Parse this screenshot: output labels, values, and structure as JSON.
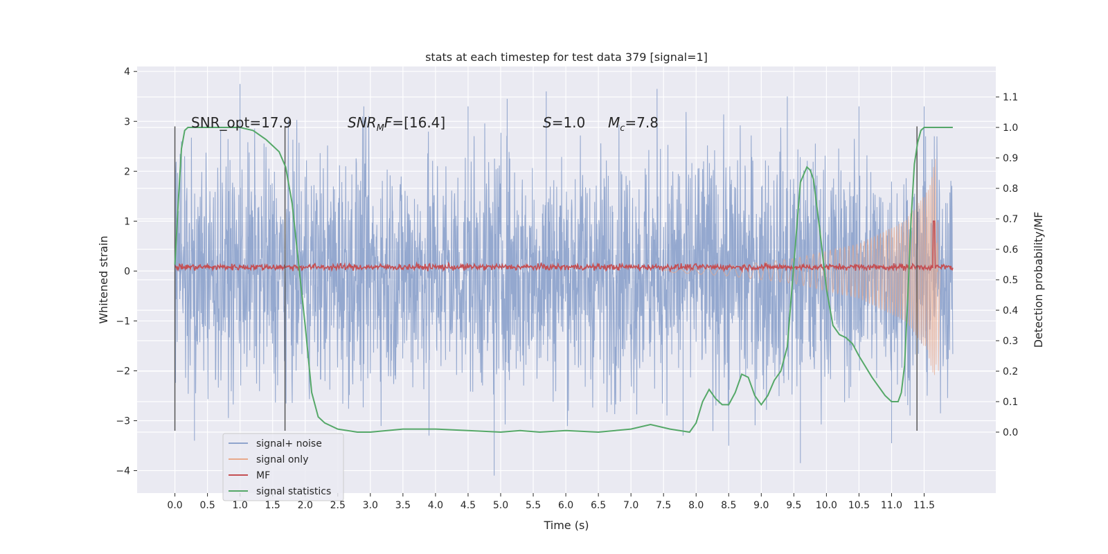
{
  "chart_data": {
    "type": "line",
    "title": "stats at each timestep for test data 379 [signal=1]",
    "xlabel": "Time (s)",
    "ylabel": "Whitened strain",
    "y2label": "Detection probability/MF",
    "xlim": [
      -0.58,
      12.6
    ],
    "ylim": [
      -4.45,
      4.1
    ],
    "y2lim": [
      -0.2,
      1.2
    ],
    "xticks": [
      0.0,
      0.5,
      1.0,
      1.5,
      2.0,
      2.5,
      3.0,
      3.5,
      4.0,
      4.5,
      5.0,
      5.5,
      6.0,
      6.5,
      7.0,
      7.5,
      8.0,
      8.5,
      9.0,
      9.5,
      10.0,
      10.5,
      11.0,
      11.5
    ],
    "xtick_labels": [
      "0.0",
      "0.5",
      "1.0",
      "1.5",
      "2.0",
      "2.5",
      "3.0",
      "3.5",
      "4.0",
      "4.5",
      "5.0",
      "5.5",
      "6.0",
      "6.5",
      "7.0",
      "7.5",
      "8.0",
      "8.5",
      "9.0",
      "9.5",
      "10.0",
      "10.5",
      "11.0",
      "11.5"
    ],
    "yticks": [
      -4,
      -3,
      -2,
      -1,
      0,
      1,
      2,
      3,
      4
    ],
    "ytick_labels": [
      "−4",
      "−3",
      "−2",
      "−1",
      "0",
      "1",
      "2",
      "3",
      "4"
    ],
    "y2ticks": [
      0.0,
      0.1,
      0.2,
      0.3,
      0.4,
      0.5,
      0.6,
      0.7,
      0.8,
      0.9,
      1.0,
      1.1
    ],
    "y2tick_labels": [
      "0.0",
      "0.1",
      "0.2",
      "0.3",
      "0.4",
      "0.5",
      "0.6",
      "0.7",
      "0.8",
      "0.9",
      "1.0",
      "1.1"
    ],
    "grid": true,
    "legend_position": "lower-left",
    "background": "#eaeaf2",
    "annotations": [
      {
        "name": "snr-opt",
        "x": 0.2,
        "y": 3.0,
        "text": "SNR_opt=17.9"
      },
      {
        "name": "snr-mf",
        "x": 2.6,
        "y": 3.0,
        "text": "[16.4]"
      },
      {
        "name": "s-value",
        "x": 5.6,
        "y": 3.0,
        "text": "=1.0"
      },
      {
        "name": "mc-value",
        "x": 6.6,
        "y": 3.0,
        "text": "=7.8"
      }
    ],
    "vertical_markers_x": [
      0.0,
      1.69,
      11.39
    ],
    "vertical_markers_yrange": [
      -3.2,
      2.9
    ],
    "series": [
      {
        "name": "signal+ noise",
        "color": "#8fa4cc",
        "kind": "noise-band",
        "x_range": [
          0.0,
          11.94
        ],
        "envelope": [
          [
            0.0,
            2.1
          ],
          [
            1.0,
            2.2
          ],
          [
            3.0,
            2.3
          ],
          [
            6.0,
            2.3
          ],
          [
            9.0,
            2.4
          ],
          [
            10.5,
            2.2
          ],
          [
            11.94,
            2.1
          ]
        ],
        "peaks_max": [
          [
            0.1,
            2.6
          ],
          [
            1.0,
            3.75
          ],
          [
            2.9,
            3.3
          ],
          [
            4.5,
            3.3
          ],
          [
            5.1,
            3.45
          ],
          [
            5.7,
            3.6
          ],
          [
            7.4,
            3.65
          ],
          [
            9.4,
            3.5
          ],
          [
            10.5,
            3.3
          ],
          [
            11.5,
            3.3
          ]
        ],
        "peaks_min": [
          [
            0.3,
            -3.4
          ],
          [
            3.9,
            -3.3
          ],
          [
            4.9,
            -4.1
          ],
          [
            7.8,
            -3.3
          ],
          [
            8.5,
            -3.5
          ],
          [
            9.6,
            -3.85
          ],
          [
            11.0,
            -3.45
          ]
        ]
      },
      {
        "name": "signal only",
        "color": "#dd8452",
        "kind": "chirp",
        "x_range": [
          7.5,
          11.94
        ],
        "amplitude": [
          [
            7.5,
            0.02
          ],
          [
            8.5,
            0.1
          ],
          [
            9.5,
            0.25
          ],
          [
            10.5,
            0.55
          ],
          [
            11.2,
            1.0
          ],
          [
            11.55,
            1.6
          ],
          [
            11.68,
            2.3
          ],
          [
            11.72,
            -2.0
          ],
          [
            11.74,
            0.0
          ]
        ]
      },
      {
        "name": "MF",
        "color": "#c44e52",
        "kind": "noise-line",
        "x_range": [
          0.0,
          11.94
        ],
        "baseline": 0.08,
        "spike": [
          11.65,
          1.0
        ]
      },
      {
        "name": "signal statistics",
        "color": "#55a868",
        "kind": "line",
        "x": [
          0.0,
          0.05,
          0.1,
          0.15,
          0.2,
          0.3,
          0.5,
          0.8,
          1.0,
          1.2,
          1.4,
          1.5,
          1.6,
          1.7,
          1.8,
          1.9,
          2.0,
          2.1,
          2.2,
          2.3,
          2.5,
          2.8,
          3.0,
          3.5,
          4.0,
          4.5,
          5.0,
          5.3,
          5.6,
          6.0,
          6.5,
          7.0,
          7.3,
          7.6,
          7.9,
          8.0,
          8.1,
          8.2,
          8.3,
          8.4,
          8.5,
          8.6,
          8.7,
          8.8,
          8.9,
          9.0,
          9.1,
          9.2,
          9.3,
          9.4,
          9.5,
          9.6,
          9.7,
          9.75,
          9.8,
          9.9,
          10.0,
          10.1,
          10.2,
          10.3,
          10.4,
          10.5,
          10.7,
          10.9,
          11.0,
          11.1,
          11.15,
          11.2,
          11.25,
          11.3,
          11.35,
          11.4,
          11.45,
          11.5,
          11.6,
          11.94
        ],
        "y": [
          0.55,
          0.75,
          0.93,
          0.99,
          1.0,
          1.0,
          1.0,
          1.0,
          1.0,
          0.99,
          0.96,
          0.94,
          0.92,
          0.87,
          0.75,
          0.55,
          0.35,
          0.13,
          0.05,
          0.03,
          0.01,
          0.0,
          0.0,
          0.01,
          0.01,
          0.005,
          0.0,
          0.005,
          0.0,
          0.005,
          0.0,
          0.01,
          0.025,
          0.01,
          0.0,
          0.03,
          0.1,
          0.14,
          0.11,
          0.09,
          0.09,
          0.13,
          0.19,
          0.18,
          0.12,
          0.09,
          0.12,
          0.17,
          0.2,
          0.28,
          0.55,
          0.82,
          0.87,
          0.86,
          0.83,
          0.66,
          0.47,
          0.35,
          0.32,
          0.31,
          0.29,
          0.25,
          0.18,
          0.12,
          0.1,
          0.1,
          0.13,
          0.22,
          0.45,
          0.7,
          0.88,
          0.95,
          0.99,
          1.0,
          1.0,
          1.0
        ]
      }
    ]
  }
}
